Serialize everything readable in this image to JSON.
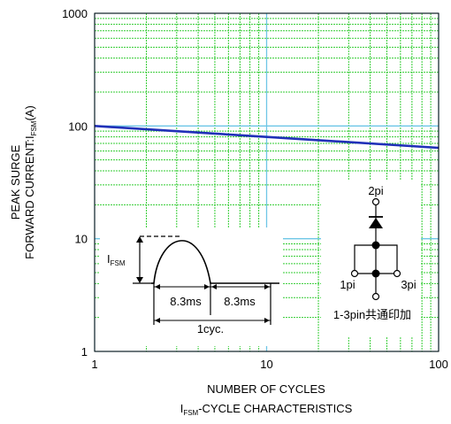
{
  "chart_data": {
    "type": "line",
    "x_scale": "log",
    "y_scale": "log",
    "xlim": [
      1,
      100
    ],
    "ylim": [
      1,
      1000
    ],
    "x_ticks": [
      1,
      10,
      100
    ],
    "y_ticks": [
      1,
      10,
      100,
      1000
    ],
    "x_tick_labels": [
      "1",
      "10",
      "100"
    ],
    "y_tick_labels": [
      "1",
      "10",
      "100",
      "1000"
    ],
    "xlabel": "NUMBER OF CYCLES",
    "ylabel_line1": "PEAK SURGE",
    "ylabel_line2_prefix": "FORWARD CURRENT:I",
    "ylabel_sub": "FSM",
    "ylabel_suffix": "(A)",
    "caption_prefix": "I",
    "caption_sub": "FSM",
    "caption_suffix": "-CYCLE CHARACTERISTICS",
    "grid": true,
    "series": [
      {
        "x": [
          1,
          10,
          100
        ],
        "y": [
          100,
          80,
          64
        ]
      }
    ],
    "inset_waveform": {
      "label_main": "I",
      "label_sub": "FSM",
      "half_period_1": "8.3ms",
      "half_period_2": "8.3ms",
      "cycle": "1cyc."
    },
    "inset_circuit": {
      "pin_top": "2pi",
      "pin_left": "1pi",
      "pin_right": "3pi",
      "note": "1-3pin共通印加"
    }
  },
  "colors": {
    "series": "#2030b8",
    "grid_minor": "#33cc33",
    "grid_decade": "#6ec6e6",
    "axis": "#000000"
  }
}
